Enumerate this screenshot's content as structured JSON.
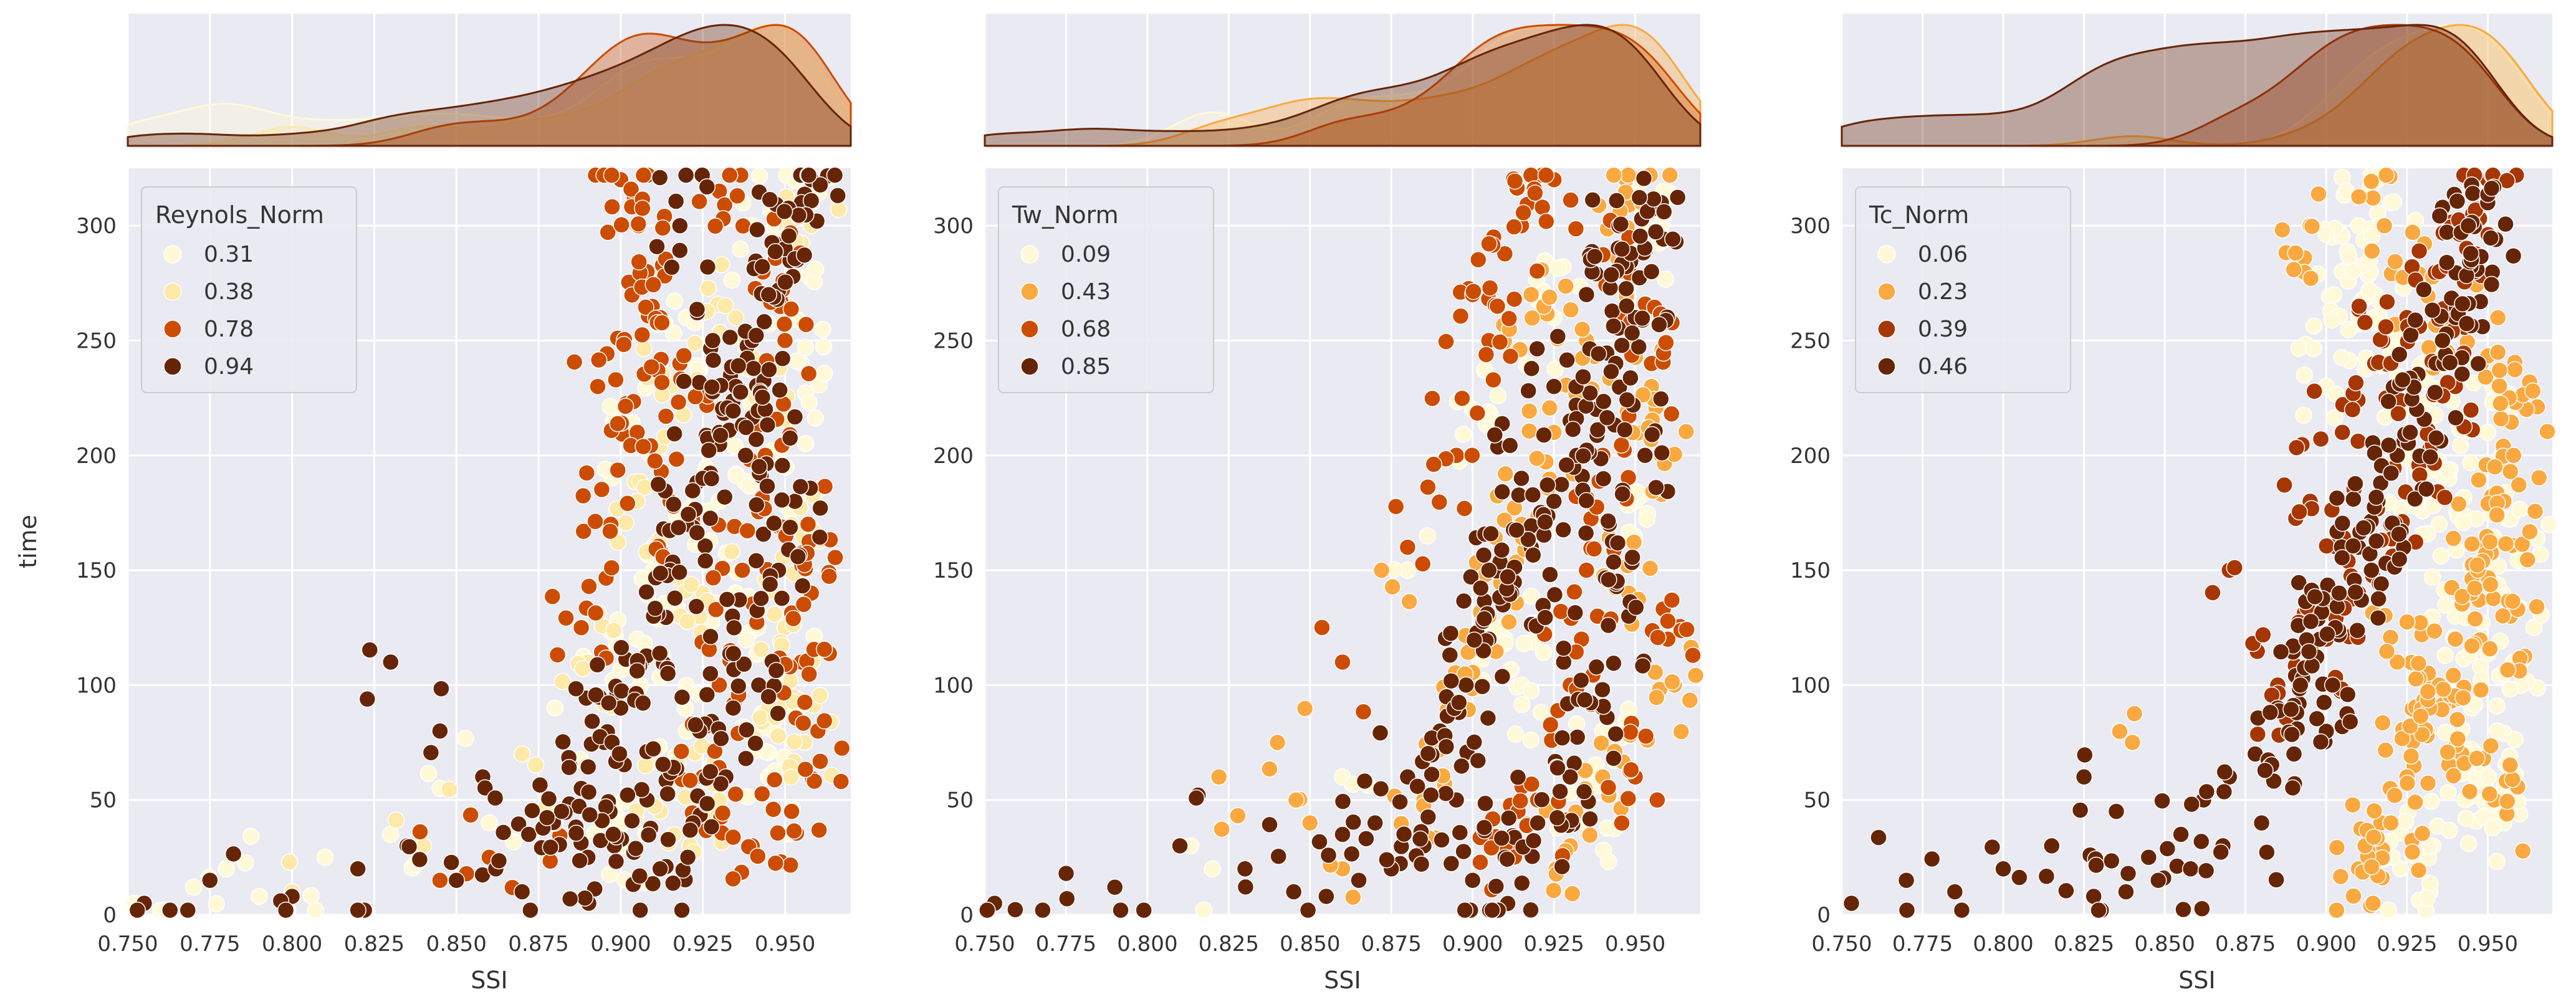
{
  "colors": {
    "plot_bg": "#eaeaf2",
    "grid": "#ffffff",
    "axis_text": "#333333",
    "legend_bg": "#eaeaf2",
    "legend_border": "#cccccc"
  },
  "chart_data": [
    {
      "type": "scatter",
      "panel": "reynolds",
      "title": "",
      "xlabel": "SSI",
      "ylabel": "time",
      "xlim": [
        0.75,
        0.97
      ],
      "ylim": [
        0,
        325
      ],
      "xticks": [
        0.75,
        0.775,
        0.8,
        0.825,
        0.85,
        0.875,
        0.9,
        0.925,
        0.95
      ],
      "xtick_labels": [
        "0.750",
        "0.775",
        "0.800",
        "0.825",
        "0.850",
        "0.875",
        "0.900",
        "0.925",
        "0.950"
      ],
      "yticks": [
        0,
        50,
        100,
        150,
        200,
        250,
        300
      ],
      "ytick_labels": [
        "0",
        "50",
        "100",
        "150",
        "200",
        "250",
        "300"
      ],
      "grid": true,
      "legend": {
        "title": "Reynols_Norm",
        "placement": "top-left",
        "entries": [
          {
            "label": "0.31",
            "color": "#fff9d8"
          },
          {
            "label": "0.38",
            "color": "#fde9a8"
          },
          {
            "label": "0.78",
            "color": "#cc4c02"
          },
          {
            "label": "0.94",
            "color": "#662506"
          }
        ]
      },
      "series": [
        {
          "name": "0.31",
          "color": "#fff9d8",
          "x": [
            0.752,
            0.77,
            0.78,
            0.79,
            0.81,
            0.83,
            0.845,
            0.86,
            0.88,
            0.9,
            0.905,
            0.91,
            0.92,
            0.93,
            0.94,
            0.945,
            0.95,
            0.955,
            0.9,
            0.92,
            0.935,
            0.948,
            0.953,
            0.958
          ],
          "y": [
            5,
            12,
            20,
            8,
            25,
            35,
            55,
            40,
            90,
            210,
            120,
            150,
            260,
            180,
            300,
            60,
            100,
            240,
            30,
            80,
            140,
            200,
            280,
            310
          ]
        },
        {
          "name": "0.38",
          "color": "#fde9a8",
          "x": [
            0.8,
            0.84,
            0.87,
            0.89,
            0.905,
            0.915,
            0.925,
            0.935,
            0.945,
            0.952,
            0.958,
            0.93,
            0.942,
            0.95,
            0.956,
            0.912
          ],
          "y": [
            10,
            30,
            70,
            110,
            180,
            230,
            140,
            260,
            90,
            170,
            300,
            50,
            215,
            125,
            75,
            45
          ]
        },
        {
          "name": "0.78",
          "color": "#cc4c02",
          "x": [
            0.845,
            0.86,
            0.878,
            0.888,
            0.893,
            0.9,
            0.905,
            0.908,
            0.912,
            0.918,
            0.925,
            0.93,
            0.937,
            0.944,
            0.95,
            0.955,
            0.958,
            0.96,
            0.957,
            0.94,
            0.948,
            0.915,
            0.905,
            0.897,
            0.93,
            0.952
          ],
          "y": [
            15,
            25,
            40,
            125,
            230,
            320,
            300,
            280,
            260,
            240,
            60,
            100,
            150,
            200,
            250,
            110,
            140,
            80,
            170,
            30,
            290,
            180,
            210,
            170,
            315,
            45
          ]
        },
        {
          "name": "0.94",
          "color": "#662506",
          "x": [
            0.755,
            0.775,
            0.8,
            0.82,
            0.835,
            0.85,
            0.862,
            0.872,
            0.88,
            0.888,
            0.895,
            0.9,
            0.905,
            0.91,
            0.915,
            0.92,
            0.925,
            0.93,
            0.935,
            0.94,
            0.945,
            0.95,
            0.955,
            0.958,
            0.942,
            0.932,
            0.922,
            0.912,
            0.948,
            0.938,
            0.928,
            0.918,
            0.953,
            0.944,
            0.934,
            0.924,
            0.908,
            0.898,
            0.89,
            0.882,
            0.87,
            0.858,
            0.845,
            0.83
          ],
          "y": [
            5,
            15,
            8,
            20,
            30,
            15,
            20,
            35,
            40,
            55,
            75,
            90,
            110,
            130,
            150,
            170,
            190,
            210,
            230,
            250,
            270,
            290,
            310,
            320,
            100,
            60,
            40,
            20,
            150,
            200,
            250,
            300,
            180,
            220,
            130,
            80,
            50,
            30,
            25,
            45,
            10,
            60,
            80,
            110
          ]
        }
      ],
      "marginal": "kde"
    },
    {
      "type": "scatter",
      "panel": "tw",
      "title": "",
      "xlabel": "SSI",
      "ylabel": "",
      "xlim": [
        0.75,
        0.97
      ],
      "ylim": [
        0,
        325
      ],
      "xticks": [
        0.75,
        0.775,
        0.8,
        0.825,
        0.85,
        0.875,
        0.9,
        0.925,
        0.95
      ],
      "xtick_labels": [
        "0.750",
        "0.775",
        "0.800",
        "0.825",
        "0.850",
        "0.875",
        "0.900",
        "0.925",
        "0.950"
      ],
      "yticks": [
        0,
        50,
        100,
        150,
        200,
        250,
        300
      ],
      "ytick_labels": [
        "0",
        "50",
        "100",
        "150",
        "200",
        "250",
        "300"
      ],
      "grid": true,
      "legend": {
        "title": "Tw_Norm",
        "placement": "top-left",
        "entries": [
          {
            "label": "0.09",
            "color": "#fff9d8"
          },
          {
            "label": "0.43",
            "color": "#f9a940"
          },
          {
            "label": "0.68",
            "color": "#cc4c02"
          },
          {
            "label": "0.85",
            "color": "#662506"
          }
        ]
      },
      "series": [
        {
          "name": "0.09",
          "color": "#fff9d8",
          "x": [
            0.82,
            0.86,
            0.88,
            0.9,
            0.91,
            0.925,
            0.94,
            0.95,
            0.958,
            0.935,
            0.915
          ],
          "y": [
            20,
            60,
            150,
            220,
            120,
            260,
            80,
            180,
            300,
            40,
            100
          ]
        },
        {
          "name": "0.43",
          "color": "#f9a940",
          "x": [
            0.822,
            0.84,
            0.85,
            0.86,
            0.872,
            0.885,
            0.895,
            0.905,
            0.915,
            0.925,
            0.935,
            0.945,
            0.952,
            0.958,
            0.962,
            0.94,
            0.93,
            0.918,
            0.948,
            0.955
          ],
          "y": [
            60,
            75,
            40,
            20,
            150,
            50,
            90,
            130,
            170,
            210,
            250,
            290,
            310,
            200,
            100,
            60,
            30,
            270,
            140,
            230
          ]
        },
        {
          "name": "0.68",
          "color": "#cc4c02",
          "x": [
            0.86,
            0.88,
            0.895,
            0.905,
            0.915,
            0.925,
            0.935,
            0.945,
            0.955,
            0.96,
            0.95,
            0.94,
            0.93,
            0.92,
            0.91,
            0.9
          ],
          "y": [
            110,
            160,
            200,
            250,
            300,
            320,
            150,
            280,
            240,
            120,
            60,
            200,
            100,
            50,
            30,
            270
          ]
        },
        {
          "name": "0.85",
          "color": "#662506",
          "x": [
            0.753,
            0.775,
            0.79,
            0.81,
            0.83,
            0.845,
            0.86,
            0.87,
            0.88,
            0.89,
            0.898,
            0.905,
            0.912,
            0.918,
            0.925,
            0.932,
            0.938,
            0.944,
            0.95,
            0.955,
            0.958,
            0.945,
            0.935,
            0.925,
            0.915,
            0.905,
            0.948,
            0.94,
            0.93,
            0.92,
            0.91,
            0.9,
            0.953,
            0.942,
            0.928,
            0.895,
            0.885,
            0.875,
            0.865,
            0.855
          ],
          "y": [
            5,
            18,
            12,
            30,
            20,
            10,
            35,
            40,
            60,
            80,
            100,
            120,
            140,
            160,
            180,
            200,
            220,
            240,
            260,
            280,
            310,
            300,
            270,
            230,
            190,
            150,
            130,
            90,
            60,
            40,
            25,
            15,
            200,
            170,
            110,
            50,
            30,
            20,
            15,
            8
          ]
        }
      ],
      "marginal": "kde"
    },
    {
      "type": "scatter",
      "panel": "tc",
      "title": "",
      "xlabel": "SSI",
      "ylabel": "",
      "xlim": [
        0.75,
        0.97
      ],
      "ylim": [
        0,
        325
      ],
      "xticks": [
        0.75,
        0.775,
        0.8,
        0.825,
        0.85,
        0.875,
        0.9,
        0.925,
        0.95
      ],
      "xtick_labels": [
        "0.750",
        "0.775",
        "0.800",
        "0.825",
        "0.850",
        "0.875",
        "0.900",
        "0.925",
        "0.950"
      ],
      "yticks": [
        0,
        50,
        100,
        150,
        200,
        250,
        300
      ],
      "ytick_labels": [
        "0",
        "50",
        "100",
        "150",
        "200",
        "250",
        "300"
      ],
      "grid": true,
      "legend": {
        "title": "Tc_Norm",
        "placement": "top-left",
        "entries": [
          {
            "label": "0.06",
            "color": "#fff9d8"
          },
          {
            "label": "0.23",
            "color": "#f9a940"
          },
          {
            "label": "0.39",
            "color": "#a63603"
          },
          {
            "label": "0.46",
            "color": "#662506"
          }
        ]
      },
      "series": [
        {
          "name": "0.06",
          "color": "#fff9d8",
          "x": [
            0.9,
            0.905,
            0.91,
            0.915,
            0.92,
            0.925,
            0.93,
            0.935,
            0.94,
            0.945,
            0.95,
            0.955,
            0.958,
            0.948,
            0.938,
            0.928,
            0.918,
            0.908,
            0.953,
            0.943,
            0.933,
            0.923,
            0.96,
            0.95
          ],
          "y": [
            230,
            280,
            300,
            260,
            310,
            200,
            240,
            170,
            130,
            90,
            60,
            40,
            110,
            150,
            190,
            220,
            250,
            280,
            80,
            50,
            30,
            20,
            160,
            210
          ]
        },
        {
          "name": "0.23",
          "color": "#f9a940",
          "x": [
            0.84,
            0.895,
            0.91,
            0.92,
            0.925,
            0.93,
            0.935,
            0.94,
            0.945,
            0.95,
            0.955,
            0.958,
            0.962,
            0.948,
            0.938,
            0.928,
            0.918,
            0.912,
            0.952,
            0.942,
            0.932,
            0.922,
            0.957,
            0.947
          ],
          "y": [
            75,
            300,
            20,
            40,
            60,
            80,
            100,
            120,
            140,
            160,
            180,
            200,
            220,
            240,
            260,
            280,
            300,
            30,
            50,
            70,
            90,
            110,
            130,
            150
          ]
        },
        {
          "name": "0.39",
          "color": "#a63603",
          "x": [
            0.87,
            0.885,
            0.895,
            0.905,
            0.915,
            0.925,
            0.935,
            0.945,
            0.95,
            0.94,
            0.93,
            0.92,
            0.91,
            0.9
          ],
          "y": [
            150,
            100,
            180,
            210,
            240,
            260,
            280,
            300,
            320,
            230,
            200,
            170,
            140,
            120
          ]
        },
        {
          "name": "0.46",
          "color": "#662506",
          "x": [
            0.753,
            0.77,
            0.785,
            0.8,
            0.815,
            0.825,
            0.835,
            0.845,
            0.855,
            0.862,
            0.87,
            0.878,
            0.885,
            0.892,
            0.898,
            0.904,
            0.91,
            0.916,
            0.922,
            0.928,
            0.934,
            0.94,
            0.946,
            0.95,
            0.944,
            0.936,
            0.926,
            0.914,
            0.902,
            0.89,
            0.88,
            0.868,
            0.858,
            0.848,
            0.838,
            0.828
          ],
          "y": [
            5,
            15,
            10,
            20,
            30,
            60,
            45,
            25,
            35,
            50,
            60,
            70,
            90,
            100,
            120,
            140,
            160,
            180,
            200,
            220,
            240,
            260,
            280,
            310,
            300,
            250,
            210,
            150,
            100,
            70,
            40,
            30,
            20,
            15,
            10,
            8
          ]
        }
      ],
      "marginal": "kde"
    }
  ]
}
